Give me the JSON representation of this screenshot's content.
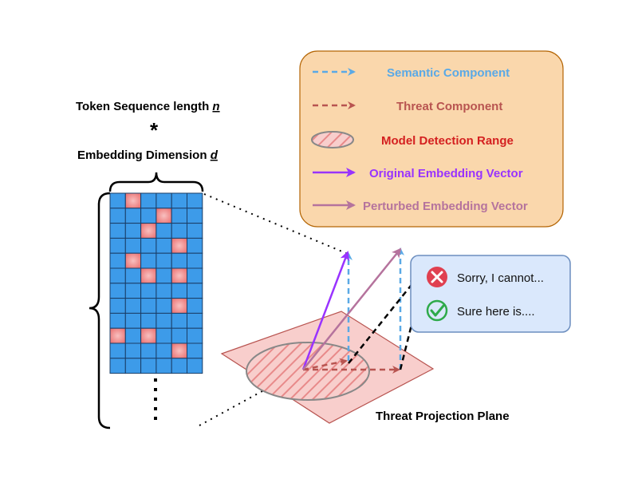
{
  "labels": {
    "token_sequence_prefix": "Token Sequence length ",
    "token_sequence_var": "n",
    "multiply_symbol": "*",
    "embedding_dim_prefix": "Embedding Dimension ",
    "embedding_dim_var": "d",
    "plane_label": "Threat Projection Plane"
  },
  "legend": {
    "items": [
      {
        "label": "Semantic Component",
        "color": "#5aa9e6",
        "style": "dashed-arrow"
      },
      {
        "label": "Threat Component",
        "color": "#b85450",
        "style": "dashed-arrow"
      },
      {
        "label": "Model Detection Range",
        "color": "#d42020",
        "style": "hatched-ellipse"
      },
      {
        "label": "Original Embedding Vector",
        "color": "#9933ff",
        "style": "solid-arrow"
      },
      {
        "label": "Perturbed Embedding Vector",
        "color": "#b5739d",
        "style": "solid-arrow"
      }
    ]
  },
  "responses": [
    {
      "text": "Sorry, I cannot...",
      "icon": "cross-circle-icon",
      "color": "#e04050"
    },
    {
      "text": "Sure here is....",
      "icon": "check-circle-icon",
      "color": "#2eaa4a"
    }
  ],
  "colors": {
    "grid_blue": "#3d9be9",
    "grid_pink": "#f08080",
    "plane_fill": "#f8cecc",
    "plane_stroke": "#b85450",
    "legend_fill": "#fad7ac",
    "legend_stroke": "#b46504",
    "response_fill": "#dae8fc",
    "response_stroke": "#6c8ebf"
  },
  "matrix": {
    "rows": 12,
    "cols": 6,
    "highlighted_cells": [
      [
        0,
        1
      ],
      [
        1,
        3
      ],
      [
        2,
        2
      ],
      [
        3,
        4
      ],
      [
        4,
        1
      ],
      [
        5,
        2
      ],
      [
        5,
        4
      ],
      [
        7,
        4
      ],
      [
        9,
        0
      ],
      [
        9,
        2
      ],
      [
        10,
        4
      ]
    ]
  }
}
